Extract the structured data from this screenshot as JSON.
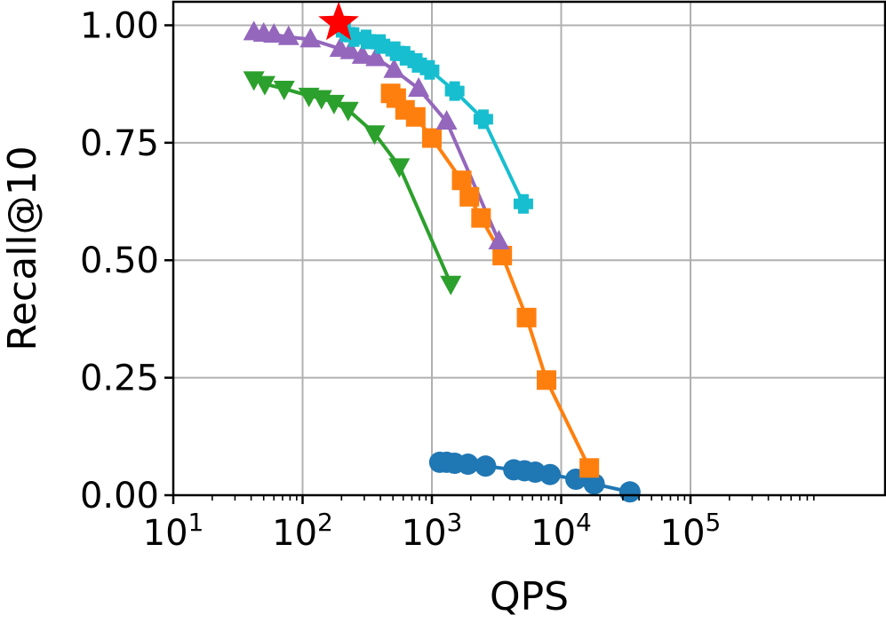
{
  "chart_data": {
    "type": "scatter",
    "xlabel": "QPS",
    "ylabel": "Recall@10",
    "xscale": "log",
    "xlim": [
      10,
      3200000
    ],
    "ylim": [
      0.0,
      1.05
    ],
    "grid": true,
    "x_ticks": [
      {
        "value": 10,
        "base": "10",
        "exp": "1"
      },
      {
        "value": 100,
        "base": "10",
        "exp": "2"
      },
      {
        "value": 1000,
        "base": "10",
        "exp": "3"
      },
      {
        "value": 10000,
        "base": "10",
        "exp": "4"
      },
      {
        "value": 100000,
        "base": "10",
        "exp": "5"
      }
    ],
    "y_ticks": [
      {
        "value": 0.0,
        "label": "0.00"
      },
      {
        "value": 0.25,
        "label": "0.25"
      },
      {
        "value": 0.5,
        "label": "0.50"
      },
      {
        "value": 0.75,
        "label": "0.75"
      },
      {
        "value": 1.0,
        "label": "1.00"
      }
    ],
    "series": [
      {
        "color": "#1f77b4",
        "marker": "circle",
        "line": true,
        "points": [
          [
            1150,
            0.07
          ],
          [
            1300,
            0.07
          ],
          [
            1500,
            0.068
          ],
          [
            1900,
            0.066
          ],
          [
            2600,
            0.062
          ],
          [
            4300,
            0.054
          ],
          [
            5200,
            0.052
          ],
          [
            6300,
            0.049
          ],
          [
            8200,
            0.044
          ],
          [
            13000,
            0.034
          ],
          [
            18000,
            0.024
          ],
          [
            34000,
            0.007
          ]
        ]
      },
      {
        "color": "#ff7f0e",
        "marker": "square",
        "line": true,
        "points": [
          [
            480,
            0.855
          ],
          [
            530,
            0.845
          ],
          [
            620,
            0.82
          ],
          [
            750,
            0.805
          ],
          [
            1000,
            0.76
          ],
          [
            1700,
            0.67
          ],
          [
            1950,
            0.635
          ],
          [
            2400,
            0.59
          ],
          [
            3500,
            0.51
          ],
          [
            5400,
            0.378
          ],
          [
            7700,
            0.245
          ],
          [
            16500,
            0.058
          ]
        ]
      },
      {
        "color": "#2ca02c",
        "marker": "triangle-down",
        "line": true,
        "points": [
          [
            42,
            0.885
          ],
          [
            51,
            0.875
          ],
          [
            72,
            0.865
          ],
          [
            112,
            0.85
          ],
          [
            140,
            0.845
          ],
          [
            175,
            0.835
          ],
          [
            225,
            0.82
          ],
          [
            360,
            0.77
          ],
          [
            560,
            0.7
          ],
          [
            1400,
            0.45
          ]
        ]
      },
      {
        "color": "#9467bd",
        "marker": "triangle-up",
        "line": true,
        "points": [
          [
            42,
            0.985
          ],
          [
            50,
            0.982
          ],
          [
            60,
            0.98
          ],
          [
            78,
            0.975
          ],
          [
            115,
            0.97
          ],
          [
            195,
            0.95
          ],
          [
            235,
            0.945
          ],
          [
            290,
            0.935
          ],
          [
            370,
            0.93
          ],
          [
            510,
            0.905
          ],
          [
            790,
            0.865
          ],
          [
            1300,
            0.795
          ],
          [
            3300,
            0.54
          ]
        ]
      },
      {
        "color": "#17becf",
        "marker": "plus",
        "line": true,
        "points": [
          [
            215,
            0.985
          ],
          [
            250,
            0.975
          ],
          [
            310,
            0.97
          ],
          [
            400,
            0.96
          ],
          [
            520,
            0.945
          ],
          [
            620,
            0.935
          ],
          [
            770,
            0.92
          ],
          [
            960,
            0.905
          ],
          [
            1500,
            0.86
          ],
          [
            2500,
            0.8
          ],
          [
            5100,
            0.62
          ]
        ]
      },
      {
        "color": "#ff0000",
        "marker": "star",
        "line": false,
        "points": [
          [
            190,
            1.005
          ]
        ]
      }
    ]
  }
}
